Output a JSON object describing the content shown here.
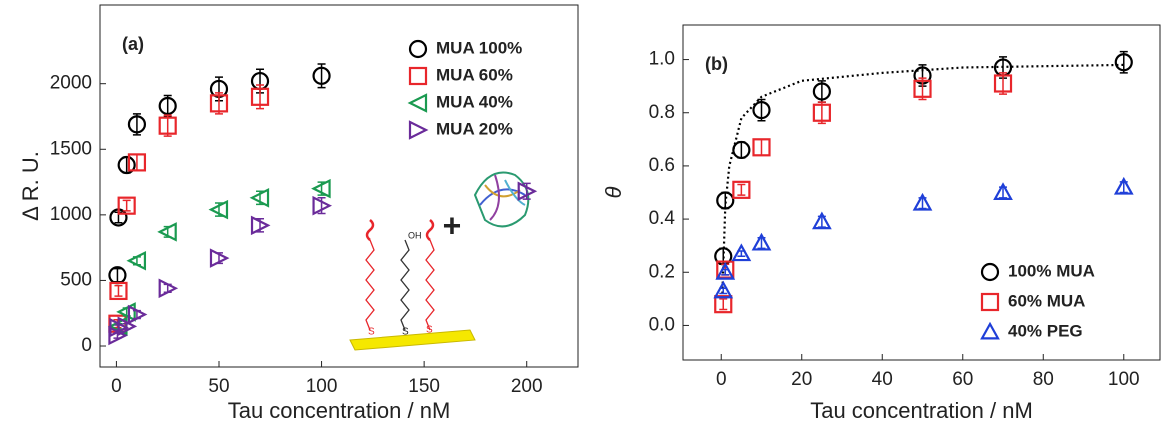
{
  "chart_data": [
    {
      "type": "scatter",
      "label": "(a)",
      "x_label": "Tau concentration / nM",
      "y_label": "Δ R. U.",
      "xlim": [
        -8,
        225
      ],
      "ylim": [
        -160,
        2600
      ],
      "xticks": [
        0,
        50,
        100,
        150,
        200
      ],
      "yticks": [
        0,
        500,
        1000,
        1500,
        2000
      ],
      "legend": "upper right",
      "series": [
        {
          "name": "MUA 100%",
          "color": "#000000",
          "marker": "circle",
          "x": [
            0.5,
            1,
            5,
            10,
            25,
            50,
            70,
            100
          ],
          "values": [
            540,
            980,
            1380,
            1690,
            1830,
            1960,
            2020,
            2060
          ],
          "errors": [
            50,
            40,
            60,
            80,
            80,
            90,
            90,
            90
          ]
        },
        {
          "name": "MUA 60%",
          "color": "#e8262b",
          "marker": "square",
          "x": [
            0.5,
            1,
            5,
            10,
            25,
            50,
            70
          ],
          "values": [
            170,
            420,
            1070,
            1400,
            1680,
            1850,
            1900
          ],
          "errors": [
            30,
            40,
            40,
            60,
            80,
            80,
            90
          ]
        },
        {
          "name": "MUA 40%",
          "color": "#1a9a50",
          "marker": "triangle-left",
          "x": [
            1,
            5,
            10,
            25,
            50,
            70,
            100
          ],
          "values": [
            150,
            260,
            650,
            870,
            1040,
            1130,
            1200
          ],
          "errors": [
            20,
            30,
            30,
            40,
            50,
            50,
            50
          ]
        },
        {
          "name": "MUA 20%",
          "color": "#6a2b9a",
          "marker": "triangle-right",
          "x": [
            0.5,
            1,
            5,
            10,
            25,
            50,
            70,
            100,
            200
          ],
          "values": [
            80,
            140,
            150,
            240,
            440,
            670,
            920,
            1070,
            1180
          ],
          "errors": [
            20,
            20,
            20,
            30,
            30,
            40,
            50,
            60,
            60
          ]
        }
      ]
    },
    {
      "type": "scatter",
      "label": "(b)",
      "x_label": "Tau concentration / nM",
      "y_label": "θ",
      "xlim": [
        -9.5,
        109
      ],
      "ylim": [
        -0.13,
        1.13
      ],
      "xticks": [
        0,
        20,
        40,
        60,
        80,
        100
      ],
      "yticks": [
        {
          "value": 0,
          "label": "0.0"
        },
        0.2,
        0.4,
        0.6,
        0.8,
        {
          "value": 1,
          "label": "1.0"
        }
      ],
      "legend": "lower right",
      "series": [
        {
          "name": "100% MUA",
          "color": "#000000",
          "marker": "circle",
          "x": [
            0.5,
            1,
            5,
            10,
            25,
            50,
            70,
            100
          ],
          "values": [
            0.26,
            0.47,
            0.66,
            0.81,
            0.88,
            0.94,
            0.97,
            0.99
          ],
          "errors": [
            0.03,
            0.03,
            0.03,
            0.04,
            0.04,
            0.04,
            0.04,
            0.04
          ]
        },
        {
          "name": "60% MUA",
          "color": "#e8262b",
          "marker": "square",
          "x": [
            0.5,
            1,
            5,
            10,
            25,
            50,
            70
          ],
          "values": [
            0.08,
            0.21,
            0.51,
            0.67,
            0.8,
            0.89,
            0.91
          ],
          "errors": [
            0.02,
            0.02,
            0.02,
            0.03,
            0.04,
            0.04,
            0.04
          ]
        },
        {
          "name": "40% PEG",
          "color": "#1f3fd8",
          "marker": "triangle-up",
          "x": [
            0.5,
            1,
            5,
            10,
            25,
            50,
            70,
            100
          ],
          "values": [
            0.13,
            0.2,
            0.27,
            0.31,
            0.39,
            0.46,
            0.5,
            0.52
          ],
          "errors": [
            0.01,
            0.01,
            0.01,
            0.02,
            0.02,
            0.02,
            0.02,
            0.02
          ]
        }
      ],
      "fit": {
        "style": "dotted",
        "color": "#000000",
        "x": [
          0.3,
          1,
          2,
          5,
          10,
          20,
          40,
          60,
          80,
          100
        ],
        "values": [
          0.12,
          0.45,
          0.6,
          0.78,
          0.86,
          0.92,
          0.95,
          0.97,
          0.975,
          0.98
        ]
      }
    }
  ]
}
